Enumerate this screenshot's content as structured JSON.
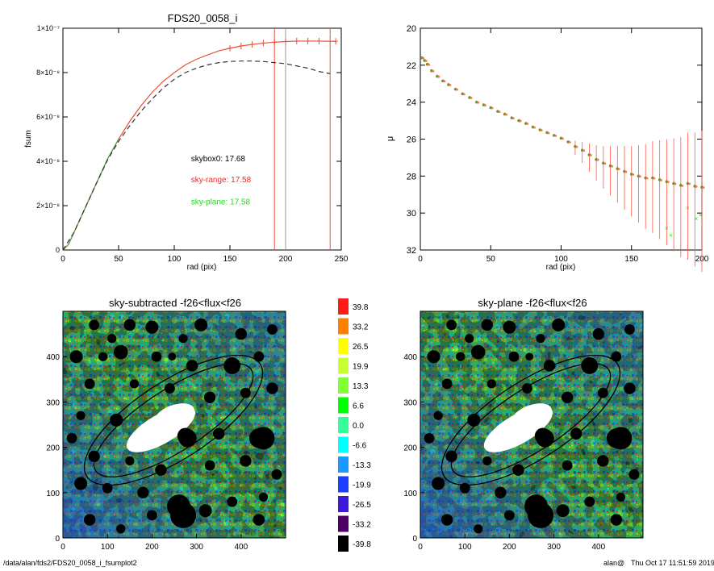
{
  "footer": {
    "path": "/data/alan/fds2/FDS20_0058_i_fsumplot2",
    "user": "alan@",
    "timestamp": "Thu Oct 17 11:51:59 2019"
  },
  "chart_data": [
    {
      "type": "line",
      "title": "FDS20_0058_i",
      "xlabel": "rad (pix)",
      "ylabel": "fsum",
      "xlim": [
        0,
        250
      ],
      "ylim": [
        0,
        1e-07
      ],
      "xticks": [
        "0",
        "50",
        "100",
        "150",
        "200",
        "250"
      ],
      "yticks": [
        "0",
        "2×10⁻⁸",
        "4×10⁻⁸",
        "6×10⁻⁸",
        "8×10⁻⁸",
        "1×10⁻⁷"
      ],
      "ytick_values": [
        0,
        2e-08,
        4e-08,
        6e-08,
        8e-08,
        1e-07
      ],
      "series": [
        {
          "color": "#e8503a",
          "style": "line-with-errorbars",
          "x": [
            0,
            5,
            10,
            20,
            30,
            40,
            50,
            60,
            70,
            80,
            90,
            100,
            110,
            120,
            130,
            140,
            150,
            160,
            170,
            180,
            190,
            200,
            210,
            220,
            230,
            245
          ],
          "y": [
            0,
            2.5e-09,
            8e-09,
            1.9e-08,
            3e-08,
            4.1e-08,
            5e-08,
            5.8e-08,
            6.5e-08,
            7.1e-08,
            7.6e-08,
            8e-08,
            8.35e-08,
            8.6e-08,
            8.8e-08,
            8.98e-08,
            9.1e-08,
            9.2e-08,
            9.27e-08,
            9.33e-08,
            9.37e-08,
            9.4e-08,
            9.42e-08,
            9.42e-08,
            9.42e-08,
            9.41e-08
          ]
        },
        {
          "color": "#44aa44",
          "style": "line",
          "x": [
            0,
            5,
            10,
            20,
            30,
            40,
            50
          ],
          "y": [
            0,
            2.5e-09,
            8e-09,
            1.9e-08,
            3e-08,
            4.1e-08,
            5e-08
          ]
        },
        {
          "color": "#333333",
          "style": "dashed",
          "x": [
            0,
            10,
            20,
            30,
            40,
            50,
            60,
            70,
            80,
            90,
            100,
            110,
            120,
            130,
            140,
            150,
            160,
            170,
            180,
            190,
            200,
            210,
            220,
            230,
            240
          ],
          "y": [
            0,
            8e-09,
            1.9e-08,
            3e-08,
            4.05e-08,
            4.9e-08,
            5.6e-08,
            6.25e-08,
            6.8e-08,
            7.3e-08,
            7.7e-08,
            8e-08,
            8.2e-08,
            8.35e-08,
            8.45e-08,
            8.5e-08,
            8.52e-08,
            8.52e-08,
            8.5e-08,
            8.45e-08,
            8.4e-08,
            8.3e-08,
            8.2e-08,
            8.05e-08,
            7.95e-08
          ]
        }
      ],
      "vlines": [
        {
          "x": 190,
          "color": "#e8503a"
        },
        {
          "x": 200,
          "color": "#999999"
        },
        {
          "x": 240,
          "color": "#e8503a"
        }
      ],
      "annotations": [
        {
          "text": "skybox0: 17.68",
          "color": "#000000",
          "x": 115,
          "y": 4e-08
        },
        {
          "text": "sky-range: 17.58",
          "color": "#ff2222",
          "x": 115,
          "y": 3.05e-08
        },
        {
          "text": "sky-plane: 17.58",
          "color": "#22dd22",
          "x": 115,
          "y": 2.05e-08
        }
      ]
    },
    {
      "type": "scatter",
      "title": "",
      "xlabel": "rad (pix)",
      "ylabel": "μ",
      "xlim": [
        0,
        200
      ],
      "ylim": [
        32,
        20
      ],
      "xticks": [
        "0",
        "50",
        "100",
        "150",
        "200"
      ],
      "yticks": [
        "20",
        "22",
        "24",
        "26",
        "28",
        "30",
        "32"
      ],
      "series": [
        {
          "color": "#6f8f2f",
          "style": "points",
          "x": [
            1,
            3,
            5,
            8,
            12,
            16,
            20,
            25,
            30,
            35,
            40,
            45,
            50,
            55,
            60,
            65,
            70,
            75,
            80,
            85,
            90,
            95,
            100,
            105,
            110,
            115,
            120,
            125,
            130,
            135,
            140,
            145,
            150,
            155,
            160,
            165,
            170,
            175,
            180,
            185,
            190,
            195,
            200
          ],
          "y": [
            21.6,
            21.75,
            21.95,
            22.3,
            22.6,
            22.85,
            23.05,
            23.3,
            23.55,
            23.75,
            24.0,
            24.15,
            24.3,
            24.5,
            24.65,
            24.85,
            25.0,
            25.15,
            25.35,
            25.5,
            25.65,
            25.8,
            25.95,
            26.15,
            26.4,
            26.6,
            26.85,
            27.1,
            27.3,
            27.45,
            27.6,
            27.75,
            27.9,
            28.0,
            28.1,
            28.1,
            28.2,
            28.3,
            28.4,
            28.5,
            28.4,
            28.55,
            28.6
          ]
        },
        {
          "color": "#22dd22",
          "style": "outlier-points",
          "x": [
            175,
            178,
            190,
            196,
            199
          ],
          "y": [
            30.8,
            31.2,
            29.7,
            30.3,
            30.1
          ]
        }
      ]
    },
    {
      "type": "heatmap",
      "title": "sky-subtracted -f26<flux<f26",
      "xlim": [
        0,
        500
      ],
      "ylim": [
        0,
        500
      ],
      "xticks": [
        "0",
        "100",
        "200",
        "300",
        "400"
      ],
      "yticks": [
        "0",
        "100",
        "200",
        "300",
        "400"
      ]
    },
    {
      "type": "heatmap",
      "title": "sky-plane -f26<flux<f26",
      "xlim": [
        0,
        500
      ],
      "ylim": [
        0,
        500
      ],
      "xticks": [
        "0",
        "100",
        "200",
        "300",
        "400"
      ],
      "yticks": [
        "0",
        "100",
        "200",
        "300",
        "400"
      ]
    },
    {
      "type": "colorbar",
      "labels": [
        "39.8",
        "33.2",
        "26.5",
        "19.9",
        "13.3",
        "6.6",
        "0.0",
        "-6.6",
        "-13.3",
        "-19.9",
        "-26.5",
        "-33.2",
        "-39.8"
      ],
      "colors": [
        "#ff1a1a",
        "#ff8000",
        "#ffff00",
        "#c8ff33",
        "#80ff33",
        "#00ff00",
        "#33ff99",
        "#00ffff",
        "#1a9aff",
        "#1a3dff",
        "#3d1ad9",
        "#4d0066",
        "#000000"
      ]
    }
  ]
}
